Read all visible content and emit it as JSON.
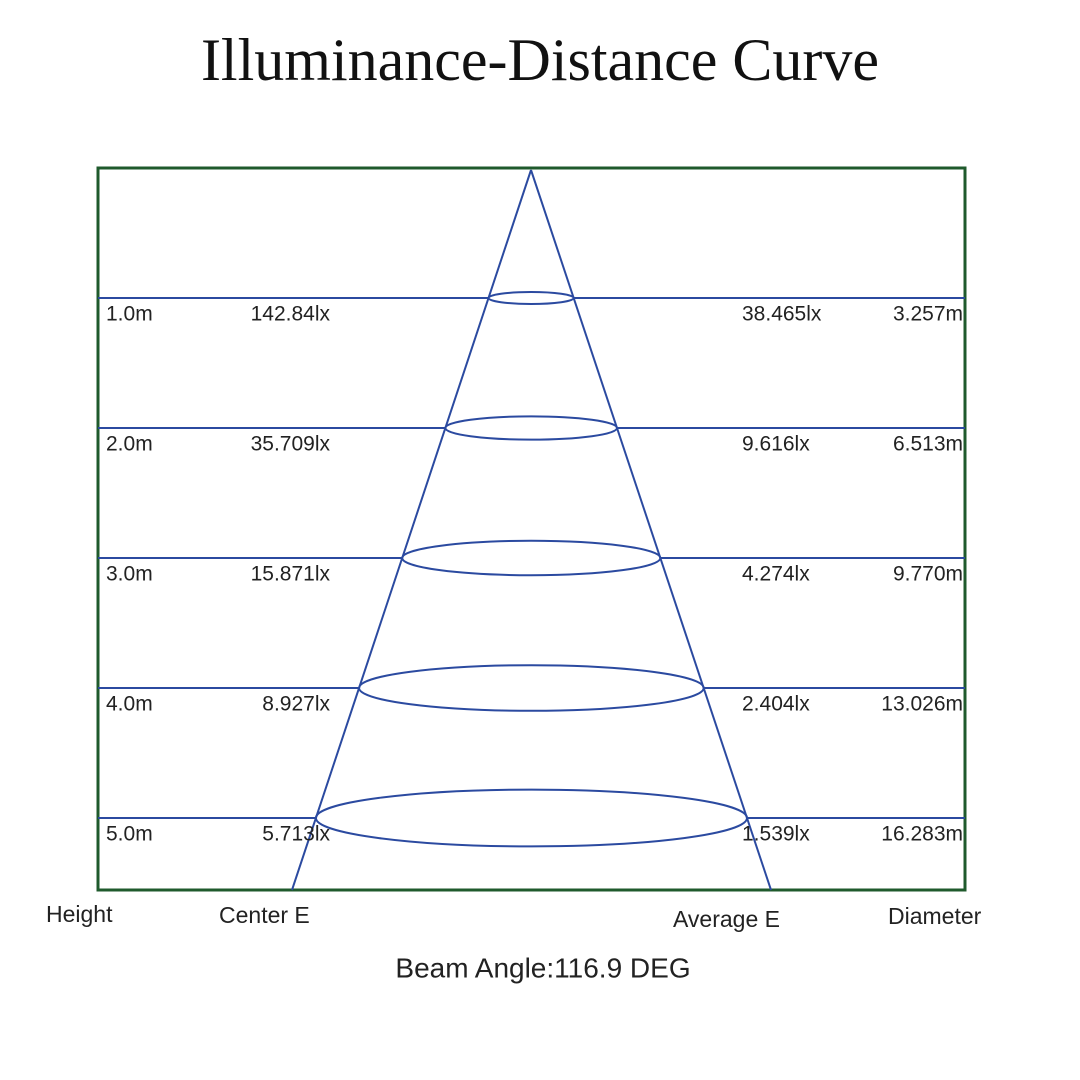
{
  "title": "Illuminance-Distance Curve",
  "rows": [
    {
      "height": "1.0m",
      "center": "142.84lx",
      "average": "38.465lx",
      "diameter": "3.257m"
    },
    {
      "height": "2.0m",
      "center": "35.709lx",
      "average": "9.616lx",
      "diameter": "6.513m"
    },
    {
      "height": "3.0m",
      "center": "15.871lx",
      "average": "4.274lx",
      "diameter": "9.770m"
    },
    {
      "height": "4.0m",
      "center": "8.927lx",
      "average": "2.404lx",
      "diameter": "13.026m"
    },
    {
      "height": "5.0m",
      "center": "5.713lx",
      "average": "1.539lx",
      "diameter": "16.283m"
    }
  ],
  "footer": {
    "height": "Height",
    "center": "Center E",
    "average": "Average E",
    "diameter": "Diameter"
  },
  "beam_angle": "Beam Angle:116.9 DEG"
}
